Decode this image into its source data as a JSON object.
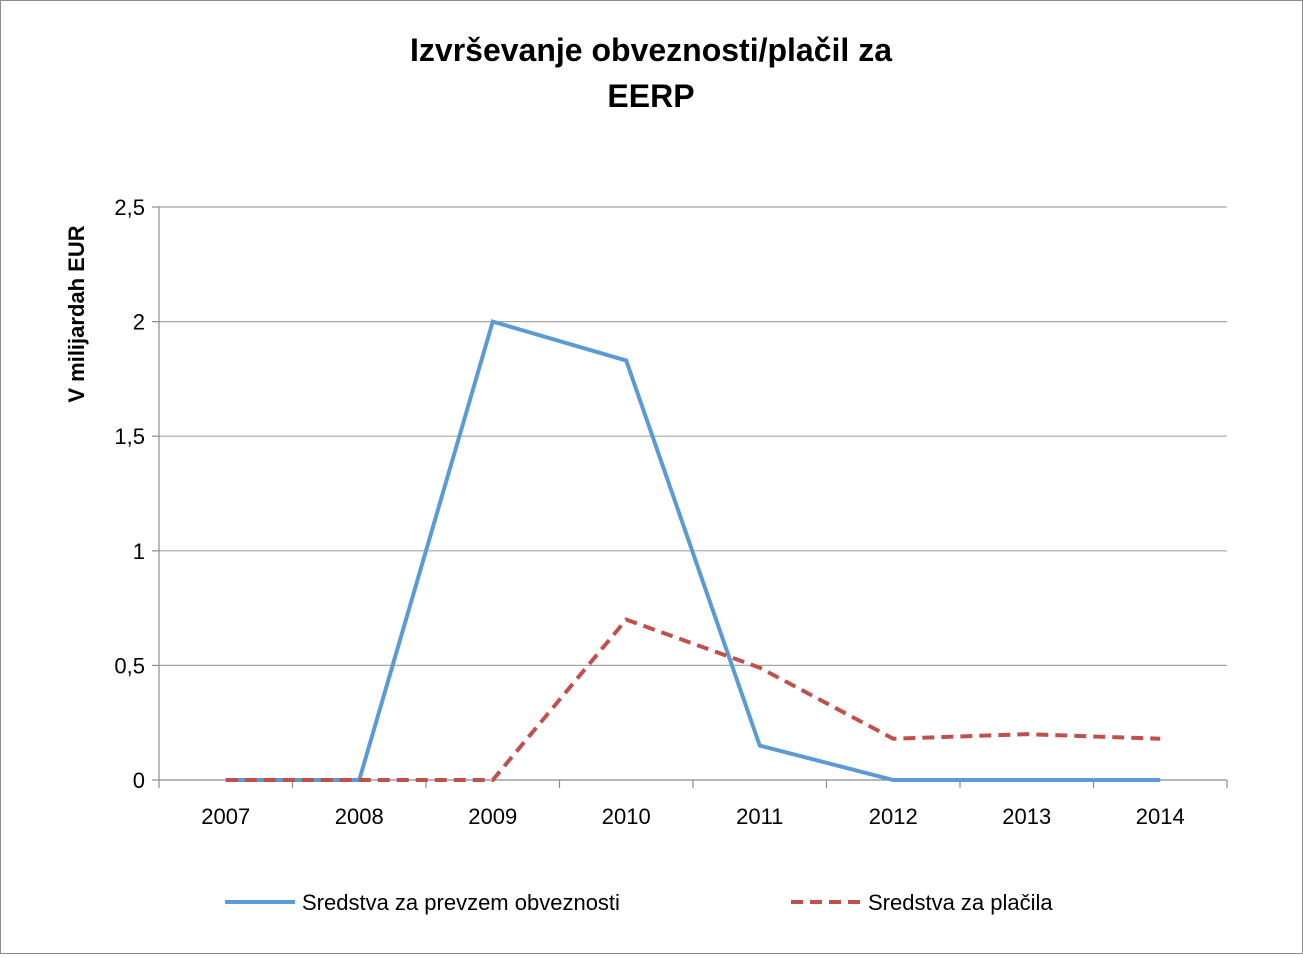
{
  "chart_data": {
    "type": "line",
    "title_lines": [
      "Izvrševanje obveznosti/plačil za",
      "EERP"
    ],
    "xlabel": "",
    "ylabel": "V milijardah EUR",
    "categories": [
      "2007",
      "2008",
      "2009",
      "2010",
      "2011",
      "2012",
      "2013",
      "2014"
    ],
    "ylim": [
      0,
      2.5
    ],
    "yticks": [
      0,
      0.5,
      1,
      1.5,
      2,
      2.5
    ],
    "ytick_labels": [
      "0",
      "0,5",
      "1",
      "1,5",
      "2",
      "2,5"
    ],
    "grid": true,
    "legend_position": "bottom",
    "series": [
      {
        "name": "Sredstva za prevzem obveznosti",
        "values": [
          0,
          0,
          2.0,
          1.83,
          0.15,
          0,
          0,
          0
        ],
        "color": "#5b9bd5",
        "dash": "solid"
      },
      {
        "name": "Sredstva za plačila",
        "values": [
          0,
          0,
          0,
          0.7,
          0.49,
          0.18,
          0.2,
          0.18
        ],
        "color": "#c0504d",
        "dash": "dashed"
      }
    ]
  }
}
